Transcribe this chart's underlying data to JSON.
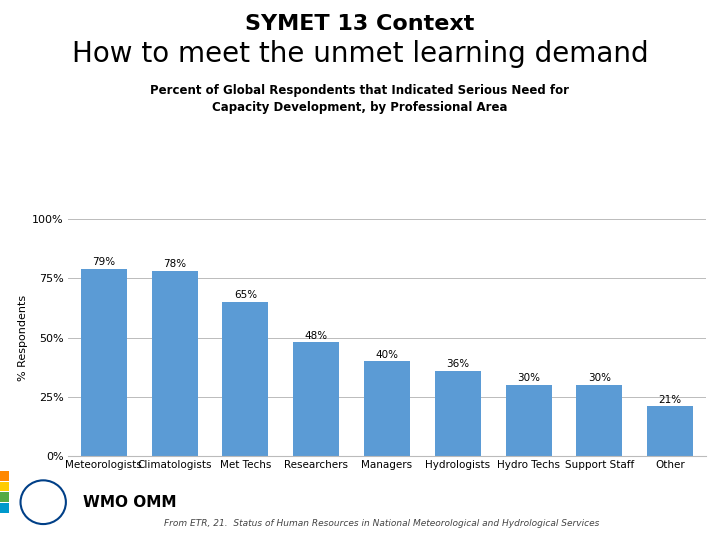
{
  "title_line1": "SYMET 13 Context",
  "title_line2": "How to meet the unmet learning demand",
  "subtitle": "Percent of Global Respondents that Indicated Serious Need for\nCapacity Development, by Professional Area",
  "categories": [
    "Meteorologists",
    "Climatologists",
    "Met Techs",
    "Researchers",
    "Managers",
    "Hydrologists",
    "Hydro Techs",
    "Support Staff",
    "Other"
  ],
  "values": [
    79,
    78,
    65,
    48,
    40,
    36,
    30,
    30,
    21
  ],
  "bar_color": "#5B9BD5",
  "ylabel": "% Respondents",
  "ylim": [
    0,
    100
  ],
  "yticks": [
    0,
    25,
    50,
    75,
    100
  ],
  "ytick_labels": [
    "0%",
    "25%",
    "50%",
    "75%",
    "100%"
  ],
  "footnote": "From ETR, 21.  Status of Human Resources in National Meteorological and Hydrological Services",
  "background_color": "#ffffff",
  "grid_color": "#bbbbbb",
  "title1_fontsize": 16,
  "title2_fontsize": 20,
  "subtitle_fontsize": 8.5,
  "bar_label_fontsize": 7.5,
  "ylabel_fontsize": 8,
  "xtick_fontsize": 7.5,
  "ytick_fontsize": 8,
  "footnote_fontsize": 6.5,
  "wmo_text_fontsize": 11,
  "strip_colors": [
    "#0099CC",
    "#55AA44",
    "#FFCC00",
    "#FF8800"
  ]
}
